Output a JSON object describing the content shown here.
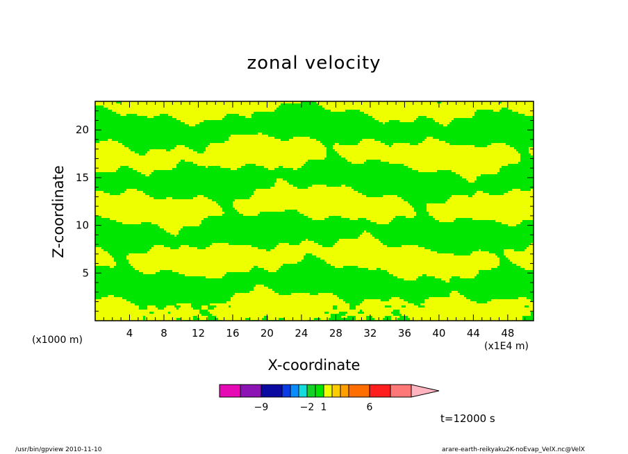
{
  "chart_data": {
    "type": "heatmap",
    "title": "zonal velocity",
    "xlabel": "X-coordinate",
    "ylabel": "Z-coordinate",
    "x_unit": "(x1E4 m)",
    "y_unit": "(x1000 m)",
    "xlim": [
      0,
      51
    ],
    "ylim": [
      0,
      23
    ],
    "x_ticks": [
      4,
      8,
      12,
      16,
      20,
      24,
      28,
      32,
      36,
      40,
      44,
      48
    ],
    "y_ticks": [
      5,
      10,
      15,
      20
    ],
    "time_label": "t=12000 s",
    "colorbar": {
      "colors": [
        "#e60ab4",
        "#8c14b4",
        "#0a0aa0",
        "#0a3ce6",
        "#0a8cff",
        "#14dcdc",
        "#14d228",
        "#00e600",
        "#eeff00",
        "#ffcc00",
        "#ffa000",
        "#ff6e00",
        "#ff1e1e",
        "#ff7878",
        "#ffb4c0"
      ],
      "labels": [
        {
          "value": -9,
          "text": "−9",
          "index": 2
        },
        {
          "value": -2,
          "text": "−2",
          "index": 6
        },
        {
          "value": 1,
          "text": "1",
          "index": 8
        },
        {
          "value": 6,
          "text": "6",
          "index": 12
        }
      ]
    },
    "field_colors": {
      "low": "#00e600",
      "high": "#eeff00"
    }
  },
  "footer": {
    "left": "/usr/bin/gpview   2010-11-10",
    "right": "arare-earth-reikyaku2K-noEvap_VelX.nc@VelX"
  }
}
